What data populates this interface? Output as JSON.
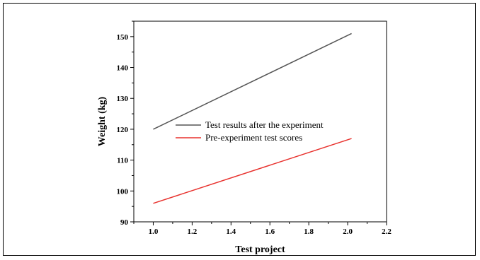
{
  "chart_data": {
    "type": "line",
    "title": "",
    "xlabel": "Test project",
    "ylabel": "Weight (kg)",
    "xlim": [
      0.9,
      2.2
    ],
    "ylim": [
      90,
      155
    ],
    "xticks": [
      1.0,
      1.2,
      1.4,
      1.6,
      1.8,
      2.0,
      2.2
    ],
    "xtick_labels": [
      "1.0",
      "1.2",
      "1.4",
      "1.6",
      "1.8",
      "2.0",
      "2.2"
    ],
    "yticks": [
      90,
      100,
      110,
      120,
      130,
      140,
      150
    ],
    "ytick_labels": [
      "90",
      "100",
      "110",
      "120",
      "130",
      "140",
      "150"
    ],
    "grid": false,
    "legend_position": "center-left",
    "series": [
      {
        "name": "Test results after the experiment",
        "color": "#555555",
        "x": [
          1.0,
          2.02
        ],
        "y": [
          120,
          151
        ]
      },
      {
        "name": "Pre-experiment test scores",
        "color": "#e8322e",
        "x": [
          1.0,
          2.02
        ],
        "y": [
          96,
          117
        ]
      }
    ]
  }
}
